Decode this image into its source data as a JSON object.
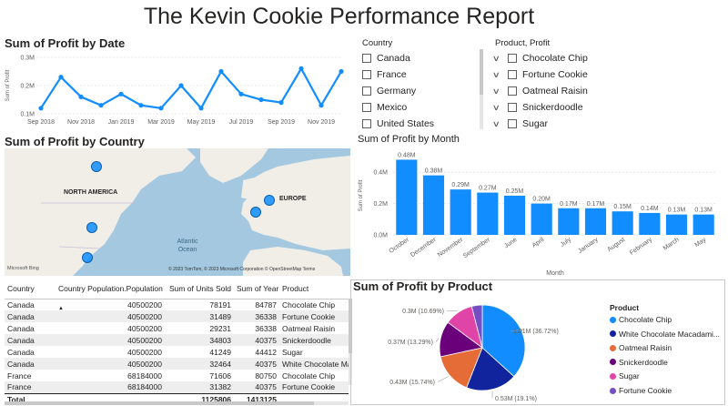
{
  "report": {
    "title": "The Kevin Cookie Performance Report"
  },
  "colors": {
    "accent": "#118dff",
    "map_water": "#a4c8e0",
    "map_land": "#f1eee8"
  },
  "line_chart": {
    "title": "Sum of Profit by Date",
    "ylabel": "Sum of Profit",
    "y_ticks": [
      "0.1M",
      "0.2M",
      "0.3M"
    ],
    "x_ticks": [
      "Sep 2018",
      "Nov 2018",
      "Jan 2019",
      "Mar 2019",
      "May 2019",
      "Jul 2019",
      "Sep 2019",
      "Nov 2019"
    ]
  },
  "country_slicer": {
    "title": "Country",
    "items": [
      "Canada",
      "France",
      "Germany",
      "Mexico",
      "United States"
    ]
  },
  "product_slicer": {
    "title": "Product, Profit",
    "items": [
      "Chocolate Chip",
      "Fortune Cookie",
      "Oatmeal Raisin",
      "Snickerdoodle",
      "Sugar"
    ]
  },
  "map": {
    "title": "Sum of Profit by Country",
    "labels": {
      "na": "NORTH AMERICA",
      "eu": "EUROPE",
      "ocean": "Atlantic Ocean"
    },
    "attribution": "© 2023 TomTom, © 2023 Microsoft Corporation  © OpenStreetMap  Terms",
    "logo": "Microsoft Bing",
    "bubbles": [
      "Canada",
      "United States",
      "Mexico",
      "France",
      "Germany"
    ]
  },
  "bar_chart": {
    "title": "Sum of Profit by Month",
    "xlabel": "Month",
    "ylabel": "Sum of Profit",
    "y_ticks": [
      "0.0M",
      "0.2M",
      "0.4M"
    ]
  },
  "table": {
    "headers": [
      "Country",
      "Country Population.Population",
      "Sum of Units Sold",
      "Sum of Year",
      "Product"
    ],
    "rows": [
      [
        "Canada",
        "40500200",
        "78191",
        "84787",
        "Chocolate Chip"
      ],
      [
        "Canada",
        "40500200",
        "31489",
        "36338",
        "Fortune Cookie"
      ],
      [
        "Canada",
        "40500200",
        "29231",
        "36338",
        "Oatmeal Raisin"
      ],
      [
        "Canada",
        "40500200",
        "34803",
        "40375",
        "Snickerdoodle"
      ],
      [
        "Canada",
        "40500200",
        "41249",
        "44412",
        "Sugar"
      ],
      [
        "Canada",
        "40500200",
        "32464",
        "40375",
        "White Chocolate Ma"
      ],
      [
        "France",
        "68184000",
        "71606",
        "80750",
        "Chocolate Chip"
      ],
      [
        "France",
        "68184000",
        "31382",
        "40375",
        "Fortune Cookie"
      ]
    ],
    "total": [
      "Total",
      "",
      "1125806",
      "1413125",
      ""
    ]
  },
  "pie_legend": {
    "title": "Product",
    "items": [
      {
        "label": "Chocolate Chip",
        "color": "#118dff"
      },
      {
        "label": "White Chocolate Macadami...",
        "color": "#12239e"
      },
      {
        "label": "Oatmeal Raisin",
        "color": "#e66c37"
      },
      {
        "label": "Snickerdoodle",
        "color": "#6b007b"
      },
      {
        "label": "Sugar",
        "color": "#e044a7"
      },
      {
        "label": "Fortune Cookie",
        "color": "#744ec2"
      }
    ]
  },
  "chart_data": [
    {
      "type": "line",
      "title": "Sum of Profit by Date",
      "xlabel": "",
      "ylabel": "Sum of Profit",
      "ylim": [
        0.1,
        0.3
      ],
      "x": [
        "2018-09",
        "2018-10",
        "2018-11",
        "2018-12",
        "2019-01",
        "2019-02",
        "2019-03",
        "2019-04",
        "2019-05",
        "2019-06",
        "2019-07",
        "2019-08",
        "2019-09",
        "2019-10",
        "2019-11",
        "2019-12"
      ],
      "series": [
        {
          "values": [
            0.12,
            0.23,
            0.16,
            0.13,
            0.17,
            0.13,
            0.12,
            0.2,
            0.12,
            0.25,
            0.17,
            0.15,
            0.14,
            0.26,
            0.13,
            0.25
          ]
        }
      ],
      "grid": true
    },
    {
      "type": "bar",
      "title": "Sum of Profit by Month",
      "xlabel": "Month",
      "ylabel": "Sum of Profit",
      "ylim": [
        0,
        0.5
      ],
      "categories": [
        "October",
        "December",
        "November",
        "September",
        "June",
        "April",
        "July",
        "January",
        "August",
        "February",
        "March",
        "May"
      ],
      "values": [
        0.48,
        0.38,
        0.29,
        0.27,
        0.25,
        0.2,
        0.17,
        0.17,
        0.15,
        0.14,
        0.13,
        0.13
      ],
      "data_labels": [
        "0.48M",
        "0.38M",
        "0.29M",
        "0.27M",
        "0.25M",
        "0.20M",
        "0.17M",
        "0.17M",
        "0.15M",
        "0.14M",
        "0.13M",
        "0.13M"
      ],
      "grid": true
    },
    {
      "type": "pie",
      "title": "Sum of Profit by Product",
      "legend": "right",
      "categories": [
        "Chocolate Chip",
        "White Chocolate Macadami...",
        "Oatmeal Raisin",
        "Snickerdoodle",
        "Sugar",
        "Fortune Cookie"
      ],
      "values": [
        1.01,
        0.53,
        0.43,
        0.37,
        0.3,
        0.11
      ],
      "percent": [
        36.72,
        19.1,
        15.74,
        13.29,
        10.69,
        4.46
      ],
      "data_labels": [
        "1.01M (36.72%)",
        "0.53M (19.1%)",
        "0.43M (15.74%)",
        "0.37M (13.29%)",
        "0.3M (10.69%)",
        ""
      ]
    }
  ]
}
